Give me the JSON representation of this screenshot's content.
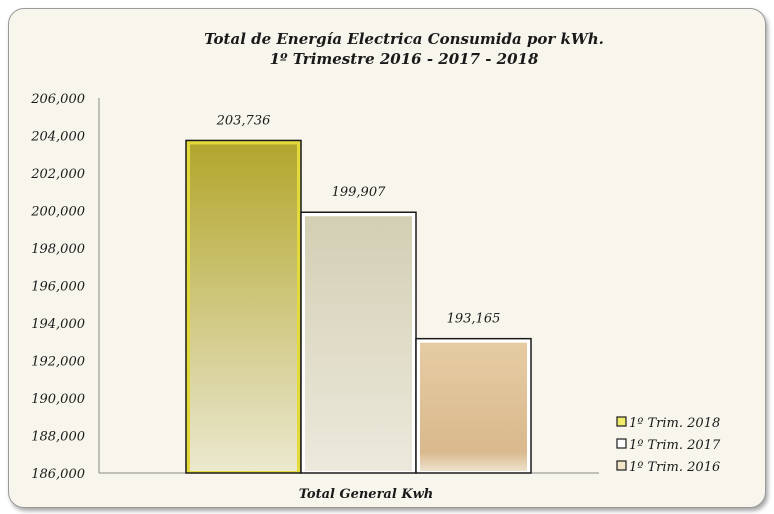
{
  "chart_data": {
    "type": "bar",
    "title": "Total de Energía Electrica Consumida por kWh.",
    "subtitle": "1º Trimestre 2016 - 2017 - 2018",
    "categories": [
      "Total General Kwh"
    ],
    "xlabel": "Total General Kwh",
    "ylabel": "",
    "ylim": [
      186000,
      206000
    ],
    "yticks": [
      186000,
      188000,
      190000,
      192000,
      194000,
      196000,
      198000,
      200000,
      202000,
      204000,
      206000
    ],
    "ytick_labels": [
      "186,000",
      "188,000",
      "190,000",
      "192,000",
      "194,000",
      "196,000",
      "198,000",
      "200,000",
      "202,000",
      "204,000",
      "206,000"
    ],
    "grid": false,
    "legend_position": "bottom-right",
    "series": [
      {
        "name": "1º Trim. 2018",
        "values": [
          203736
        ],
        "label": "203,736",
        "color_top": "#b3a62e",
        "color_bottom": "#ebe8cf",
        "edge": "#e2d93a"
      },
      {
        "name": "1º Trim. 2017",
        "values": [
          199907
        ],
        "label": "199,907",
        "color_top": "#d3cfb4",
        "color_bottom": "#ece9dc",
        "edge": "#ffffff"
      },
      {
        "name": "1º Trim. 2016",
        "values": [
          193165
        ],
        "label": "193,165",
        "color_top": "#e6cca3",
        "color_bottom": "#d9b98d",
        "edge": "#ffffff"
      }
    ],
    "legend": [
      {
        "label": "1º Trim. 2018",
        "color": "#f2ea6a"
      },
      {
        "label": "1º Trim. 2017",
        "color": "#ffffff"
      },
      {
        "label": "1º Trim. 2016",
        "color": "#f3e6c8"
      }
    ]
  }
}
